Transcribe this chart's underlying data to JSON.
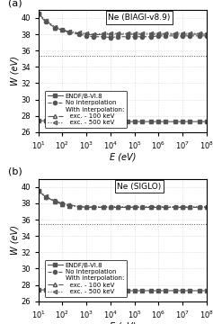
{
  "title_a": "Ne (BIAGI-v8.9)",
  "title_b": "Ne (SIGLO)",
  "xlabel": "E (eV)",
  "ylabel": "W (eV)",
  "xlim": [
    10,
    100000000.0
  ],
  "ylim": [
    26,
    41
  ],
  "yticks": [
    26,
    28,
    30,
    32,
    34,
    36,
    38,
    40
  ],
  "hline_value": 35.4,
  "x_vals": [
    10,
    20,
    50,
    100,
    200,
    500,
    1000,
    2000,
    5000,
    10000,
    20000,
    50000,
    100000,
    200000,
    500000,
    1000000,
    2000000,
    5000000,
    10000000,
    20000000,
    50000000,
    100000000
  ],
  "endf_a": [
    27.4,
    27.4,
    27.4,
    27.4,
    27.4,
    27.3,
    27.3,
    27.3,
    27.3,
    27.3,
    27.3,
    27.3,
    27.3,
    27.3,
    27.3,
    27.3,
    27.3,
    27.3,
    27.3,
    27.3,
    27.3,
    27.3
  ],
  "no_interp_a": [
    40.5,
    39.5,
    38.8,
    38.5,
    38.2,
    38.0,
    37.8,
    37.7,
    37.7,
    37.6,
    37.7,
    37.7,
    37.7,
    37.7,
    37.7,
    37.8,
    37.8,
    37.8,
    37.8,
    37.8,
    37.8,
    37.8
  ],
  "exc100_a": [
    40.5,
    39.7,
    38.8,
    38.5,
    38.3,
    38.1,
    38.0,
    37.9,
    38.0,
    38.0,
    38.0,
    38.0,
    38.0,
    38.0,
    38.0,
    38.0,
    38.0,
    38.0,
    38.0,
    38.0,
    38.0,
    38.0
  ],
  "exc500_a": [
    40.5,
    39.7,
    38.9,
    38.6,
    38.3,
    38.2,
    38.1,
    38.0,
    38.1,
    38.1,
    38.1,
    38.1,
    38.1,
    38.1,
    38.1,
    38.1,
    38.1,
    38.1,
    38.1,
    38.1,
    38.1,
    38.1
  ],
  "endf_b": [
    27.4,
    27.4,
    27.4,
    27.4,
    27.4,
    27.3,
    27.3,
    27.3,
    27.3,
    27.3,
    27.3,
    27.3,
    27.3,
    27.3,
    27.3,
    27.3,
    27.3,
    27.3,
    27.3,
    27.3,
    27.3,
    27.3
  ],
  "no_interp_b": [
    39.5,
    38.8,
    38.3,
    38.0,
    37.8,
    37.6,
    37.5,
    37.5,
    37.5,
    37.5,
    37.5,
    37.5,
    37.5,
    37.5,
    37.5,
    37.5,
    37.5,
    37.5,
    37.5,
    37.5,
    37.5,
    37.5
  ],
  "exc100_b": [
    39.5,
    38.8,
    38.2,
    37.9,
    37.7,
    37.6,
    37.5,
    37.5,
    37.5,
    37.5,
    37.5,
    37.5,
    37.5,
    37.5,
    37.5,
    37.5,
    37.5,
    37.5,
    37.5,
    37.5,
    37.5,
    37.5
  ],
  "exc500_b": [
    39.5,
    38.9,
    38.2,
    37.9,
    37.7,
    37.6,
    37.6,
    37.6,
    37.6,
    37.6,
    37.6,
    37.6,
    37.6,
    37.6,
    37.6,
    37.6,
    37.6,
    37.6,
    37.6,
    37.6,
    37.6,
    37.6
  ],
  "label_endf": "ENDF/B-VI.8",
  "label_no_interp": "No interpolation",
  "label_exc100": "exc. - 100 keV",
  "label_exc500": "exc. - 500 keV",
  "label_with_interp": "With interpolation:",
  "color_lines": "#555555",
  "marker_size": 3.0,
  "linewidth": 0.8
}
